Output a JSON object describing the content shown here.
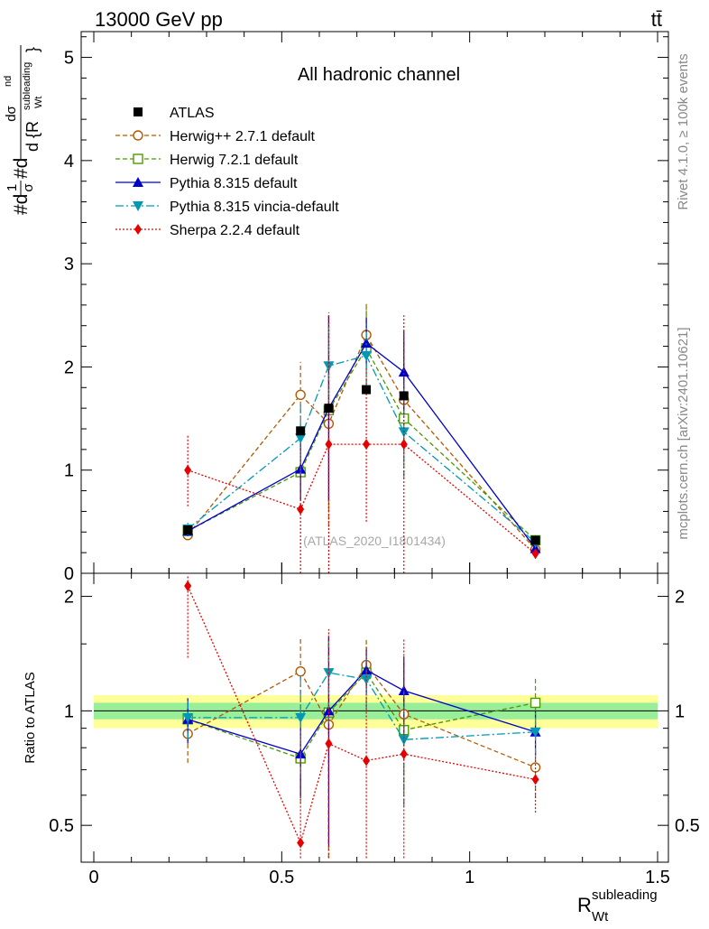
{
  "header": {
    "energy_label": "13000 GeV pp",
    "process_label": "tt̄"
  },
  "side_labels": {
    "rivet": "Rivet 4.1.0, ≥ 100k events",
    "mcplots": "mcplots.cern.ch [arXiv:2401.10621]"
  },
  "chart_data": {
    "type": "scatter",
    "title": "All hadronic channel",
    "watermark": "(ATLAS_2020_I1801434)",
    "ylabel": "#d1/σ#d dσ^{nd}/d{R_{Wt}^{subleading}}",
    "ylabel_parts": {
      "prefix": "#d",
      "one": "1",
      "sigma": "σ",
      "mid": "#d",
      "numer": "dσ",
      "numer_sup": "nd",
      "denom": "d {R",
      "denom_sup": "subleading",
      "denom_sub": "Wt",
      "close": "}"
    },
    "xlabel": "R_{Wt}^{subleading}",
    "xlabel_parts": {
      "base": "R",
      "sup": "subleading",
      "sub": "Wt"
    },
    "ratio_ylabel": "Ratio to ATLAS",
    "xlim": [
      0,
      1.5
    ],
    "ylim_main": [
      0,
      5.25
    ],
    "ylim_ratio": [
      0.4,
      2.3
    ],
    "x_ticks": [
      "0",
      "0.5",
      "1",
      "1.5"
    ],
    "y_ticks_main": [
      "0",
      "1",
      "2",
      "3",
      "4",
      "5"
    ],
    "y_ticks_ratio": [
      "0.5",
      "1",
      "2"
    ],
    "legend_position": "top-left",
    "x": [
      0.25,
      0.55,
      0.625,
      0.725,
      0.825,
      1.175
    ],
    "bands": {
      "inner": [
        0.95,
        1.05
      ],
      "outer": [
        0.9,
        1.1
      ]
    },
    "data": {
      "name": "ATLAS",
      "color": "#000000",
      "values": [
        0.42,
        1.38,
        1.6,
        1.78,
        1.72,
        0.32
      ]
    },
    "series": [
      {
        "name": "Herwig++ 2.7.1 default",
        "color": "#b35900",
        "marker": "circle-open",
        "dash": "5,3",
        "values": [
          0.37,
          1.73,
          1.45,
          2.31,
          1.68,
          0.23
        ],
        "errors": [
          0.05,
          0.32,
          1.0,
          0.3,
          0.6,
          0.06
        ],
        "ratio": [
          0.87,
          1.27,
          0.92,
          1.32,
          0.98,
          0.71
        ],
        "ratio_errors": [
          0.14,
          0.3,
          0.62,
          0.22,
          0.36,
          0.12
        ]
      },
      {
        "name": "Herwig 7.2.1 default",
        "color": "#4d9900",
        "marker": "square-open",
        "dash": "5,3",
        "values": [
          0.41,
          0.98,
          1.58,
          2.18,
          1.5,
          0.32
        ],
        "errors": [
          0.05,
          0.35,
          0.95,
          0.4,
          0.55,
          0.05
        ],
        "ratio": [
          0.95,
          0.75,
          0.99,
          1.26,
          0.89,
          1.05
        ],
        "ratio_errors": [
          0.12,
          0.18,
          0.6,
          0.25,
          0.32,
          0.18
        ]
      },
      {
        "name": "Pythia 8.315 default",
        "color": "#0000cc",
        "marker": "triangle-up",
        "dash": "",
        "values": [
          0.41,
          1.01,
          1.6,
          2.23,
          1.95,
          0.24
        ],
        "errors": [
          0.05,
          0.3,
          0.9,
          0.25,
          0.4,
          0.04
        ],
        "ratio": [
          0.95,
          0.77,
          1.0,
          1.28,
          1.13,
          0.88
        ],
        "ratio_errors": [
          0.13,
          0.18,
          0.56,
          0.17,
          0.26,
          0.12
        ]
      },
      {
        "name": "Pythia 8.315 vincia-default",
        "color": "#0099b3",
        "marker": "triangle-down",
        "dash": "9,3,2,3",
        "values": [
          0.43,
          1.31,
          2.01,
          2.11,
          1.37,
          0.3
        ],
        "errors": [
          0.06,
          0.35,
          0.45,
          0.3,
          0.45,
          0.05
        ],
        "ratio": [
          0.96,
          0.96,
          1.26,
          1.21,
          0.84,
          0.88
        ],
        "ratio_errors": [
          0.12,
          0.28,
          0.34,
          0.2,
          0.28,
          0.12
        ]
      },
      {
        "name": "Sherpa 2.2.4 default",
        "color": "#e60000",
        "marker": "diamond",
        "dash": "2,2",
        "values": [
          1.0,
          0.62,
          1.25,
          1.25,
          1.25,
          0.19
        ],
        "errors": [
          0.35,
          0.62,
          1.25,
          0.75,
          1.25,
          0.05
        ],
        "ratio": [
          2.13,
          0.45,
          0.82,
          0.74,
          0.77,
          0.66
        ],
        "ratio_errors": [
          0.75,
          0.45,
          0.82,
          0.74,
          0.77,
          0.12
        ]
      }
    ]
  }
}
